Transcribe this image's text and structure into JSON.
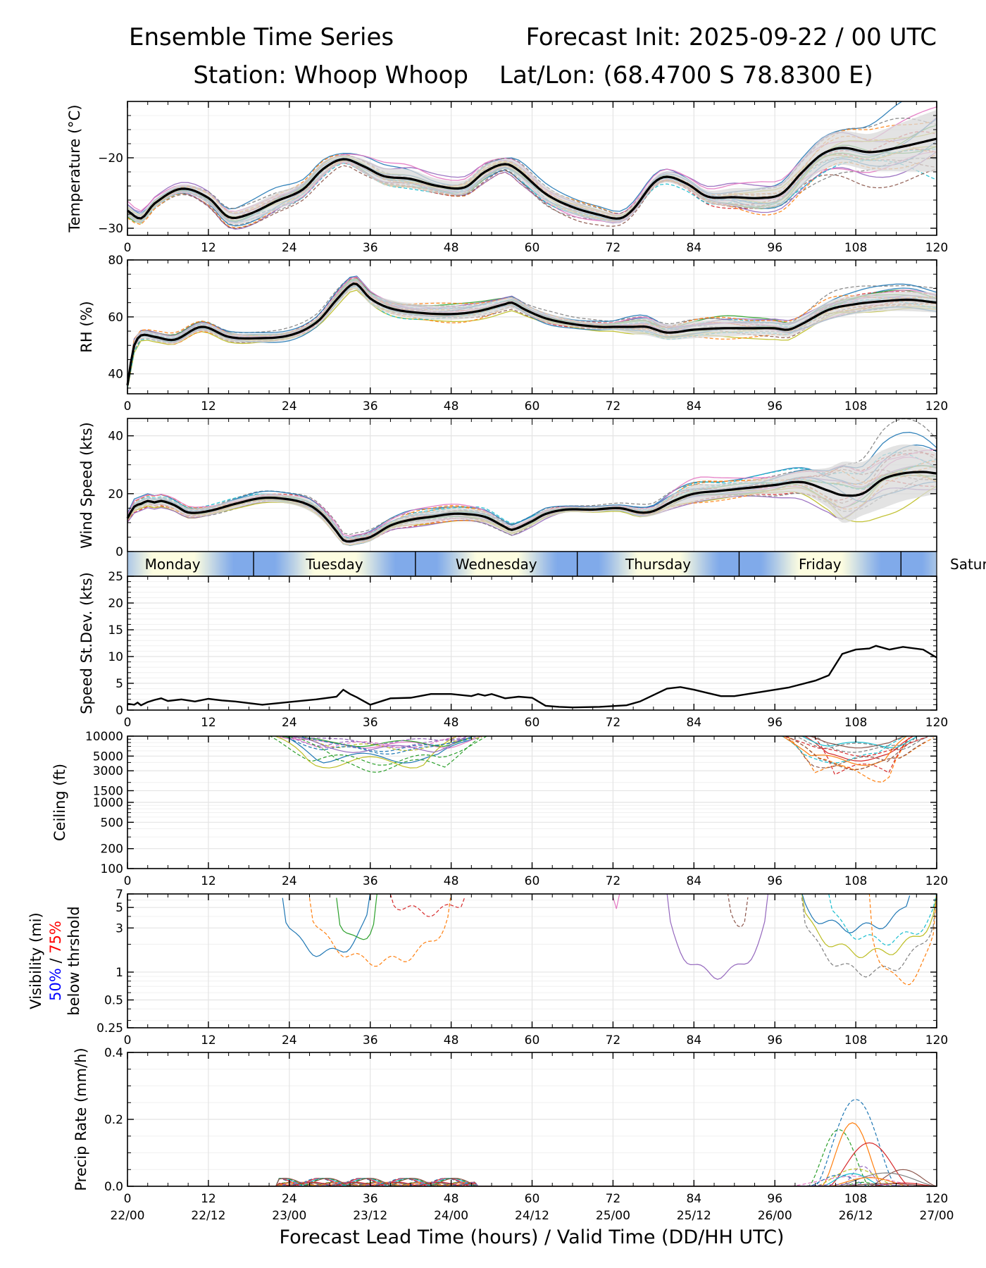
{
  "header": {
    "title_left": "Ensemble Time Series",
    "title_right": "Forecast Init: 2025-09-22 / 00 UTC",
    "station": "Station: Whoop Whoop",
    "latlon": "Lat/Lon: (68.4700 S 78.8300 E)"
  },
  "x_axis": {
    "label": "Forecast Lead Time (hours) / Valid Time (DD/HH UTC)",
    "ticks": [
      "0",
      "12",
      "24",
      "36",
      "48",
      "60",
      "72",
      "84",
      "96",
      "108",
      "120"
    ],
    "valid_time_ticks": [
      "22/00",
      "22/12",
      "23/00",
      "23/12",
      "24/00",
      "24/12",
      "25/00",
      "25/12",
      "26/00",
      "26/12",
      "27/00"
    ]
  },
  "day_bar": {
    "days": [
      "Monday",
      "Tuesday",
      "Wednesday",
      "Thursday",
      "Friday",
      "Saturday"
    ],
    "colors": {
      "day": "#fdfde0",
      "night": "#80aaea"
    }
  },
  "colors": {
    "mean": "#000000",
    "spread": "#d9d9d9",
    "grid": "#e4e4e4",
    "vis_50": "#0000ff",
    "vis_75": "#ff0000",
    "members": [
      "#1f77b4",
      "#ff7f0e",
      "#2ca02c",
      "#d62728",
      "#9467bd",
      "#8c564b",
      "#e377c2",
      "#7f7f7f",
      "#bcbd22",
      "#17becf"
    ]
  },
  "chart_data": [
    {
      "type": "line",
      "id": "temperature",
      "ylabel": "Temperature (°C)",
      "ylim": [
        -31,
        -12
      ],
      "yticks": [
        "-20",
        "-30"
      ],
      "x": [
        0,
        2,
        4,
        8,
        12,
        15,
        18,
        22,
        26,
        29,
        32,
        35,
        38,
        42,
        46,
        50,
        53,
        56,
        58,
        62,
        66,
        70,
        73,
        75,
        78,
        80,
        83,
        86,
        90,
        94,
        97,
        100,
        103,
        106,
        110,
        114,
        120
      ],
      "mean": [
        -27.5,
        -28.6,
        -26.5,
        -24.4,
        -25.7,
        -28.4,
        -28.0,
        -26.2,
        -24.5,
        -21.6,
        -20.2,
        -21.2,
        -22.6,
        -23.0,
        -24.0,
        -24.2,
        -22.0,
        -20.9,
        -21.8,
        -25.1,
        -27.0,
        -28.1,
        -28.6,
        -27.3,
        -23.6,
        -22.7,
        -23.7,
        -25.5,
        -25.6,
        -25.7,
        -25.1,
        -22.1,
        -19.5,
        -18.6,
        -19.2,
        -18.6,
        -17.3
      ],
      "spread_low": [
        -28.3,
        -29.3,
        -27.2,
        -25.0,
        -26.5,
        -29.3,
        -29.1,
        -27.4,
        -25.5,
        -22.6,
        -20.8,
        -22.2,
        -23.8,
        -24.3,
        -25.0,
        -25.2,
        -23.0,
        -21.6,
        -22.9,
        -26.2,
        -28.0,
        -28.9,
        -29.2,
        -27.9,
        -24.3,
        -23.5,
        -24.5,
        -26.4,
        -26.9,
        -27.2,
        -26.6,
        -24.0,
        -21.8,
        -21.0,
        -21.8,
        -21.9,
        -22.0
      ],
      "spread_high": [
        -26.7,
        -27.9,
        -25.9,
        -23.8,
        -24.9,
        -27.5,
        -26.9,
        -25.0,
        -23.5,
        -20.6,
        -19.6,
        -20.2,
        -21.4,
        -21.7,
        -23.0,
        -23.2,
        -21.0,
        -20.2,
        -20.7,
        -24.0,
        -26.0,
        -27.3,
        -28.0,
        -26.7,
        -22.9,
        -21.9,
        -22.9,
        -24.6,
        -24.3,
        -24.2,
        -23.6,
        -20.2,
        -17.2,
        -16.2,
        -16.6,
        -15.3,
        -13.2
      ]
    },
    {
      "type": "line",
      "id": "rh",
      "ylabel": "RH (%)",
      "ylim": [
        33,
        80
      ],
      "yticks": [
        "80",
        "60",
        "40"
      ],
      "x": [
        0,
        0.5,
        1,
        2,
        4,
        7,
        11,
        15,
        19,
        24,
        28,
        31,
        33,
        34,
        36,
        39,
        43,
        48,
        52,
        56,
        57,
        59,
        62,
        66,
        70,
        72,
        75,
        77,
        80,
        84,
        88,
        92,
        96,
        98,
        100,
        104,
        108,
        112,
        116,
        120
      ],
      "mean": [
        36,
        44,
        50,
        53.5,
        53,
        52,
        56.5,
        53,
        52.5,
        53.5,
        58,
        66,
        71,
        71.5,
        66.5,
        63,
        61.5,
        61,
        62,
        64.5,
        65,
        62.5,
        59.5,
        57.5,
        56.5,
        56.5,
        56.5,
        56.5,
        54.5,
        55.5,
        56,
        56,
        56,
        55.5,
        57.5,
        62.5,
        64.5,
        65.5,
        66,
        65
      ],
      "spread_low": [
        35,
        42,
        48,
        52,
        51.5,
        50.5,
        55,
        51.5,
        51,
        52,
        56.5,
        64,
        69,
        69.5,
        64.5,
        61,
        59.5,
        59,
        60,
        62.5,
        63,
        61,
        58,
        56.5,
        55.5,
        55.5,
        54,
        53.5,
        52,
        52.5,
        53,
        53.5,
        53.5,
        53,
        55,
        59,
        61,
        62,
        62,
        61.5
      ],
      "spread_high": [
        37,
        46,
        52,
        55,
        54.5,
        53.5,
        58,
        54.5,
        54,
        55,
        59.5,
        68,
        73,
        73.5,
        68.5,
        66,
        64.5,
        64,
        64.5,
        66.5,
        67,
        64.5,
        61.5,
        59,
        58,
        58,
        59,
        59.5,
        57.5,
        58.5,
        59,
        58.5,
        58.5,
        58,
        60,
        65.5,
        67.5,
        68.5,
        69,
        68.5
      ]
    },
    {
      "type": "line",
      "id": "wind",
      "ylabel": "Wind Speed (kts)",
      "ylim": [
        0,
        46
      ],
      "yticks": [
        "40",
        "20",
        "0"
      ],
      "x": [
        0,
        1,
        2,
        3,
        4,
        5,
        7,
        9,
        12,
        16,
        20,
        24,
        27,
        29,
        31,
        32,
        33,
        34,
        36,
        39,
        42,
        45,
        48,
        50,
        53,
        56,
        57,
        60,
        62,
        65,
        69,
        73,
        76,
        78,
        81,
        84,
        88,
        92,
        96,
        100,
        104,
        106,
        109,
        112,
        115,
        118,
        120
      ],
      "mean": [
        11.5,
        15.5,
        16.5,
        17.5,
        17,
        17.5,
        16,
        13.5,
        14,
        16.5,
        18.5,
        18,
        16,
        12.5,
        7,
        4,
        3.5,
        4,
        5,
        9,
        11,
        12,
        13,
        13,
        12,
        8.5,
        7.5,
        10.5,
        13,
        14.5,
        14.5,
        15,
        13.5,
        14,
        17.5,
        20,
        21,
        22,
        23,
        24,
        21,
        19.5,
        20,
        25,
        27,
        27.5,
        27
      ],
      "spread_low": [
        10.5,
        14,
        15,
        16,
        15.5,
        16,
        14.5,
        12,
        12.5,
        15,
        17,
        16.5,
        14,
        10.5,
        5,
        2.5,
        2,
        2.5,
        3.5,
        7.5,
        9,
        10,
        11,
        11,
        10,
        7,
        6,
        9,
        11.5,
        13.5,
        13.5,
        14,
        12,
        12.5,
        15,
        17,
        18.5,
        19.5,
        20,
        20,
        15,
        10,
        12.5,
        15,
        17.5,
        19,
        20
      ],
      "spread_high": [
        12.5,
        17,
        18,
        19,
        18.5,
        19,
        17.5,
        15,
        15.5,
        18,
        20,
        19.5,
        18,
        14.5,
        9,
        5.5,
        5,
        5.5,
        6.5,
        10.5,
        13,
        14,
        15,
        15,
        14,
        10,
        9,
        12,
        14.5,
        15.5,
        15.5,
        16,
        15,
        15.5,
        20,
        23,
        23.5,
        24.5,
        26,
        28,
        29,
        31,
        31,
        35,
        37,
        36,
        34
      ]
    },
    {
      "type": "line",
      "id": "speed_stdev",
      "ylabel": "Speed St.Dev. (kts)",
      "ylim": [
        0,
        25
      ],
      "yticks": [
        "25",
        "20",
        "15",
        "10",
        "5",
        "0"
      ],
      "x": [
        0,
        1,
        1.5,
        2,
        3,
        4,
        5,
        6,
        8,
        10,
        12,
        14,
        16,
        20,
        24,
        28,
        31,
        32,
        33,
        34,
        36,
        39,
        42,
        45,
        48,
        51,
        52,
        53,
        54,
        56,
        58,
        60,
        62,
        64,
        66,
        70,
        74,
        76,
        80,
        82,
        84,
        86,
        88,
        90,
        94,
        98,
        102,
        104,
        106,
        108,
        110,
        111,
        113,
        115,
        118,
        120
      ],
      "values": [
        1.2,
        1.0,
        1.4,
        0.9,
        1.5,
        1.9,
        2.2,
        1.7,
        2.0,
        1.6,
        2.1,
        1.8,
        1.6,
        1.0,
        1.5,
        2.0,
        2.5,
        3.8,
        3.0,
        2.4,
        1.0,
        2.2,
        2.3,
        3.0,
        3.0,
        2.6,
        3.0,
        2.7,
        3.0,
        2.2,
        2.5,
        2.3,
        0.8,
        0.6,
        0.5,
        0.6,
        0.9,
        1.6,
        4.0,
        4.3,
        3.8,
        3.2,
        2.6,
        2.6,
        3.4,
        4.2,
        5.5,
        6.5,
        10.5,
        11.3,
        11.5,
        12.0,
        11.3,
        11.8,
        11.3,
        9.8
      ]
    },
    {
      "type": "line",
      "id": "ceiling",
      "ylabel": "Ceiling (ft)",
      "yscale": "log",
      "ylim": [
        100,
        10000
      ],
      "yticks": [
        "10000",
        "5000",
        "3000",
        "1500",
        "1000",
        "500",
        "200",
        "100"
      ]
    },
    {
      "type": "line",
      "id": "visibility",
      "ylabel": "Visibility (mi)",
      "ylabel_50": "50%",
      "ylabel_sep": " / ",
      "ylabel_75": "75%",
      "ylabel_below": "below thrshold",
      "yscale": "log",
      "ylim": [
        0.25,
        7
      ],
      "yticks": [
        "7",
        "5",
        "3",
        "1",
        "0.5",
        "0.25"
      ]
    },
    {
      "type": "line",
      "id": "precip",
      "ylabel": "Precip Rate (mm/h)",
      "ylim": [
        0,
        0.4
      ],
      "yticks": [
        "0.4",
        "0.2",
        "0.0"
      ]
    }
  ]
}
